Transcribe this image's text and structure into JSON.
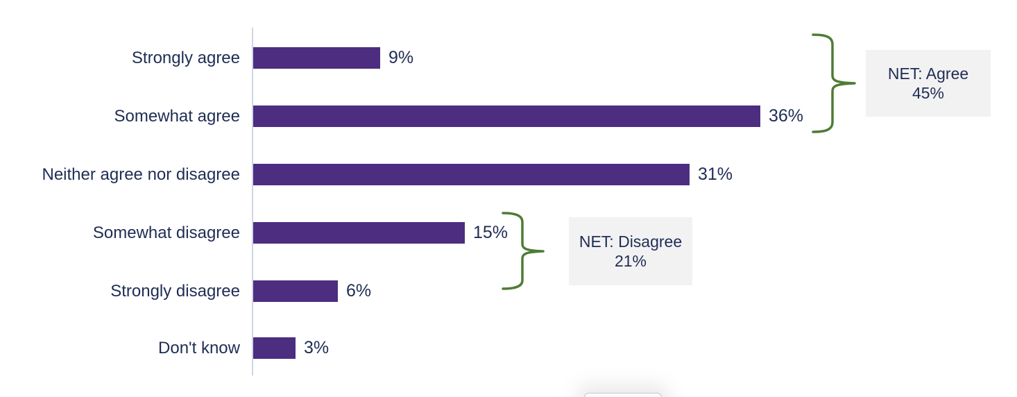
{
  "chart_data": {
    "type": "bar",
    "orientation": "horizontal",
    "title": "",
    "xlabel": "",
    "ylabel": "",
    "xlim": [
      0,
      40
    ],
    "grid": false,
    "legend": false,
    "categories": [
      "Strongly agree",
      "Somewhat agree",
      "Neither agree nor disagree",
      "Somewhat disagree",
      "Strongly disagree",
      "Don't know"
    ],
    "values": [
      9,
      36,
      31,
      15,
      6,
      3
    ],
    "value_labels": [
      "9%",
      "36%",
      "31%",
      "15%",
      "6%",
      "3%"
    ],
    "annotations": [
      {
        "label": "NET: Agree",
        "value_label": "45%",
        "value": 45,
        "covers": [
          "Strongly agree",
          "Somewhat agree"
        ]
      },
      {
        "label": "NET: Disagree",
        "value_label": "21%",
        "value": 21,
        "covers": [
          "Somewhat disagree",
          "Strongly disagree"
        ]
      }
    ]
  },
  "colors": {
    "bar_purple": "#4c2d80",
    "text_navy": "#1f2d54",
    "brace_green": "#4e7c35",
    "net_box_bg": "#f2f2f3",
    "axis_line": "#cdd5e6"
  }
}
